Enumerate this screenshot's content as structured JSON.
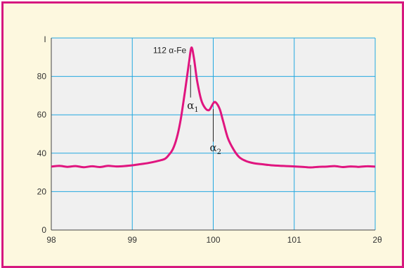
{
  "chart_data": {
    "type": "line",
    "title": "",
    "ylabel": "I",
    "xlabel": "2θ",
    "xlim": [
      98,
      102
    ],
    "ylim": [
      0,
      100
    ],
    "x_ticks": [
      98,
      99,
      100,
      101
    ],
    "x_tick_labels": [
      "98",
      "99",
      "100",
      "101"
    ],
    "y_ticks": [
      0,
      20,
      40,
      60,
      80
    ],
    "y_tick_labels": [
      "0",
      "20",
      "40",
      "60",
      "80"
    ],
    "grid": true,
    "colors": {
      "line": "#e0157f",
      "grid": "#22a7e0",
      "plot_bg": "#f0f0f0",
      "frame": "#d6187f",
      "background": "#fdf8df"
    },
    "annotations": [
      {
        "text": "112 α-Fe"
      },
      {
        "text": "α1"
      },
      {
        "text": "α2"
      }
    ],
    "series": [
      {
        "points": [
          [
            98.0,
            33.0
          ],
          [
            98.1,
            33.4
          ],
          [
            98.2,
            32.9
          ],
          [
            98.3,
            33.3
          ],
          [
            98.4,
            32.7
          ],
          [
            98.5,
            33.2
          ],
          [
            98.6,
            32.8
          ],
          [
            98.7,
            33.4
          ],
          [
            98.8,
            33.1
          ],
          [
            98.9,
            33.3
          ],
          [
            99.0,
            33.7
          ],
          [
            99.1,
            34.3
          ],
          [
            99.2,
            34.9
          ],
          [
            99.3,
            35.8
          ],
          [
            99.4,
            37.0
          ],
          [
            99.45,
            39.0
          ],
          [
            99.5,
            42.0
          ],
          [
            99.55,
            48.0
          ],
          [
            99.6,
            58.0
          ],
          [
            99.65,
            72.0
          ],
          [
            99.7,
            87.0
          ],
          [
            99.73,
            95.0
          ],
          [
            99.76,
            90.0
          ],
          [
            99.8,
            78.0
          ],
          [
            99.85,
            68.0
          ],
          [
            99.9,
            63.5
          ],
          [
            99.95,
            62.5
          ],
          [
            100.0,
            66.0
          ],
          [
            100.03,
            66.5
          ],
          [
            100.08,
            63.0
          ],
          [
            100.12,
            57.0
          ],
          [
            100.18,
            48.0
          ],
          [
            100.25,
            42.0
          ],
          [
            100.32,
            38.0
          ],
          [
            100.4,
            36.0
          ],
          [
            100.5,
            34.8
          ],
          [
            100.6,
            34.3
          ],
          [
            100.7,
            33.8
          ],
          [
            100.8,
            33.5
          ],
          [
            100.9,
            33.3
          ],
          [
            101.0,
            33.1
          ],
          [
            101.1,
            32.9
          ],
          [
            101.2,
            32.6
          ],
          [
            101.3,
            32.9
          ],
          [
            101.4,
            33.0
          ],
          [
            101.5,
            33.3
          ],
          [
            101.6,
            32.8
          ],
          [
            101.7,
            33.1
          ],
          [
            101.8,
            32.9
          ],
          [
            101.9,
            33.2
          ],
          [
            102.0,
            33.0
          ]
        ]
      }
    ]
  }
}
